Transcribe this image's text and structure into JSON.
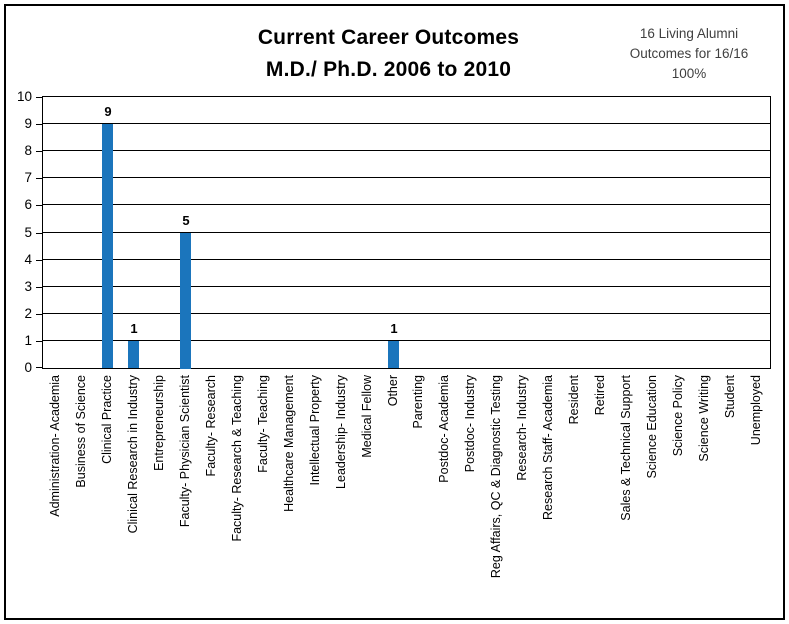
{
  "title": {
    "line1": "Current Career Outcomes",
    "line2": "M.D./ Ph.D. 2006 to 2010"
  },
  "note": {
    "line1": "16 Living Alumni",
    "line2": "Outcomes for 16/16",
    "line3": "100%"
  },
  "chart_data": {
    "type": "bar",
    "title": "Current Career Outcomes M.D./ Ph.D. 2006 to 2010",
    "annotation": "16 Living Alumni Outcomes for 16/16 100%",
    "categories": [
      "Administration- Academia",
      "Business of Science",
      "Clinical Practice",
      "Clinical Research in Industry",
      "Entrepreneurship",
      "Faculty- Physician Scientist",
      "Faculty- Research",
      "Faculty- Research & Teaching",
      "Faculty- Teaching",
      "Healthcare Management",
      "Intellectual Property",
      "Leadership- Industry",
      "Medical Fellow",
      "Other",
      "Parenting",
      "Postdoc- Academia",
      "Postdoc- Industry",
      "Reg Affairs, QC & Diagnostic Testing",
      "Research- Industry",
      "Research Staff- Academia",
      "Resident",
      "Retired",
      "Sales & Technical Support",
      "Science Education",
      "Science Policy",
      "Science Writing",
      "Student",
      "Unemployed"
    ],
    "values": [
      0,
      0,
      9,
      1,
      0,
      5,
      0,
      0,
      0,
      0,
      0,
      0,
      0,
      1,
      0,
      0,
      0,
      0,
      0,
      0,
      0,
      0,
      0,
      0,
      0,
      0,
      0,
      0
    ],
    "xlabel": "",
    "ylabel": "",
    "ylim": [
      0,
      10
    ],
    "yticks": [
      0,
      1,
      2,
      3,
      4,
      5,
      6,
      7,
      8,
      9,
      10
    ],
    "bar_color": "#1B75BC",
    "grid": true,
    "legend": false,
    "data_labels": true
  }
}
